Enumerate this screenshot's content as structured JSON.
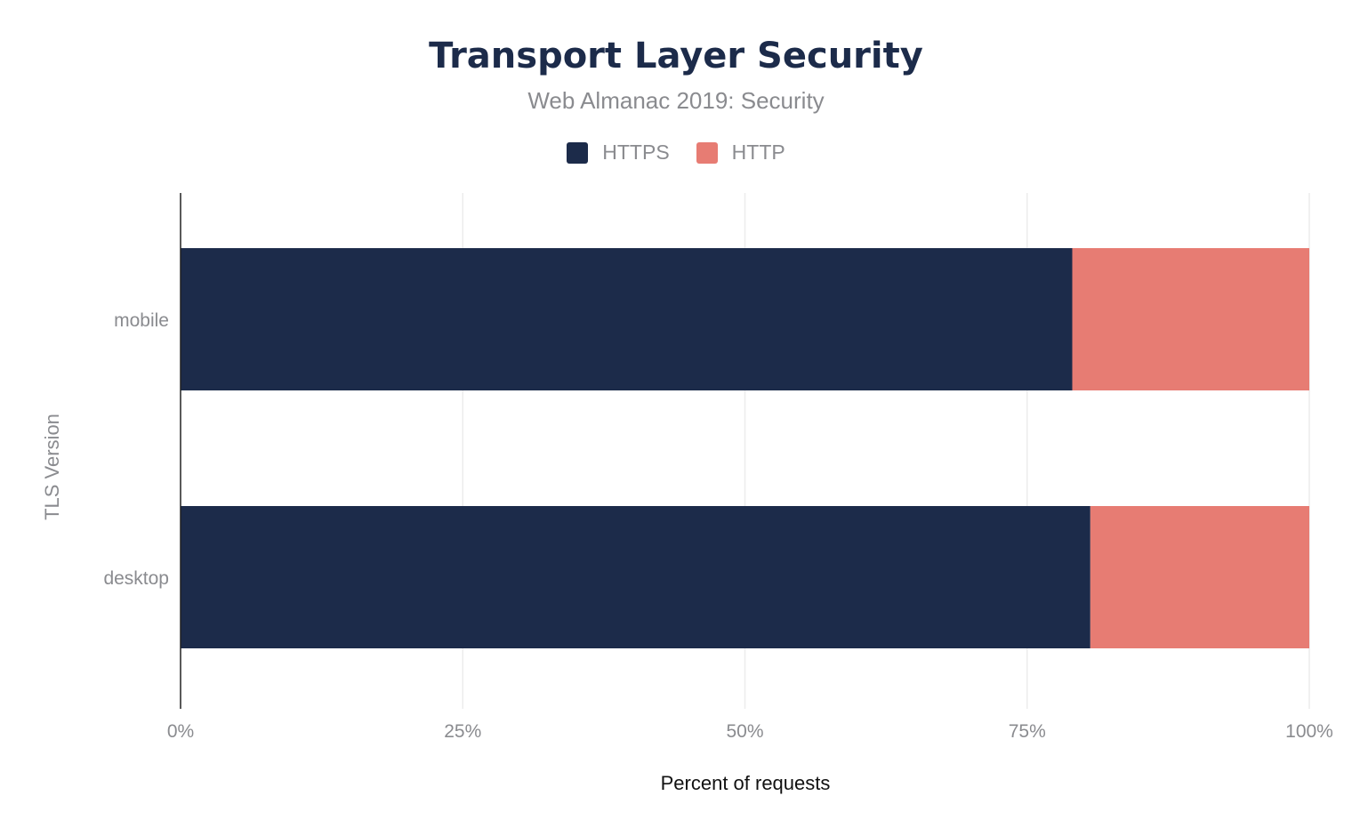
{
  "chart_data": {
    "type": "bar",
    "orientation": "horizontal",
    "stacked": true,
    "title": "Transport Layer Security",
    "subtitle": "Web Almanac 2019: Security",
    "xlabel": "Percent of requests",
    "ylabel": "TLS Version",
    "categories": [
      "mobile",
      "desktop"
    ],
    "series": [
      {
        "name": "HTTPS",
        "color": "#1c2b4a",
        "values": [
          79.0,
          80.6
        ]
      },
      {
        "name": "HTTP",
        "color": "#e77c73",
        "values": [
          21.0,
          19.4
        ]
      }
    ],
    "xlim": [
      0,
      100
    ],
    "xticks": [
      "0%",
      "25%",
      "50%",
      "75%",
      "100%"
    ],
    "grid": true,
    "legend": "top-center"
  }
}
